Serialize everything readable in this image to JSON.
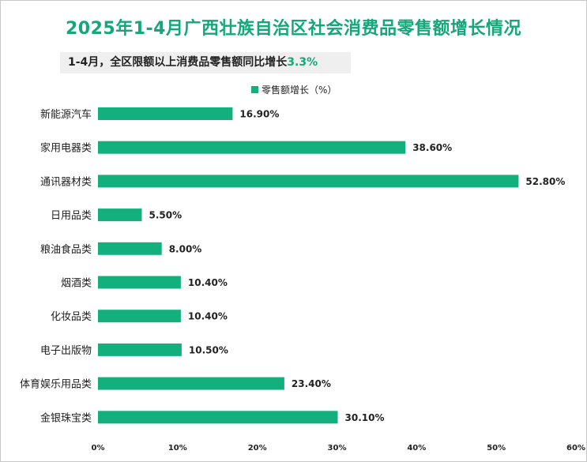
{
  "title": "2025年1-4月广西壮族自治区社会消费品零售额增长情况",
  "subtitle": {
    "prefix": "1-4月，全区限额以上消费品零售额同比增长",
    "highlight": "3.3%"
  },
  "colors": {
    "bar": "#13b07e",
    "title": "#13a77a",
    "text": "#222222"
  },
  "chart_data": {
    "type": "bar",
    "orientation": "horizontal",
    "categories": [
      "新能源汽车",
      "家用电器类",
      "通讯器材类",
      "日用品类",
      "粮油食品类",
      "烟酒类",
      "化妆品类",
      "电子出版物",
      "体育娱乐用品类",
      "金银珠宝类"
    ],
    "series": [
      {
        "name": "零售额增长（%）",
        "values": [
          16.9,
          38.6,
          52.8,
          5.5,
          8.0,
          10.4,
          10.4,
          10.5,
          23.4,
          30.1
        ]
      }
    ],
    "data_labels": [
      "16.90%",
      "38.60%",
      "52.80%",
      "5.50%",
      "8.00%",
      "10.40%",
      "10.40%",
      "10.50%",
      "23.40%",
      "30.10%"
    ],
    "x_ticks": [
      "0%",
      "10%",
      "20%",
      "30%",
      "40%",
      "50%",
      "60%"
    ],
    "xlim": [
      0,
      60
    ],
    "grid": false,
    "legend": "top-center"
  }
}
